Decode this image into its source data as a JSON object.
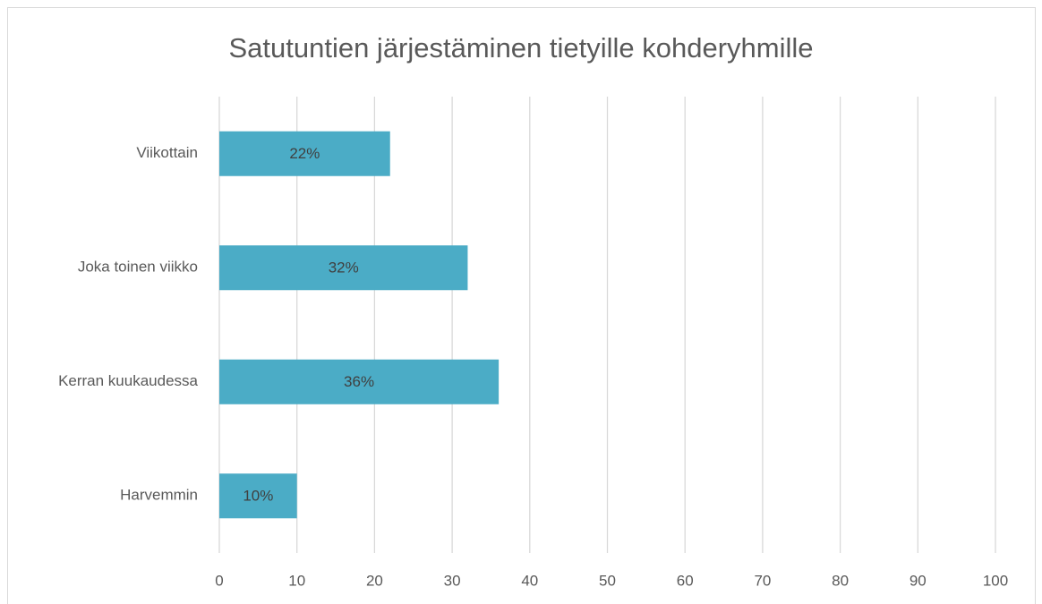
{
  "chart_data": {
    "type": "bar",
    "orientation": "horizontal",
    "title": "Satutuntien järjestäminen tietyille kohderyhmille",
    "categories": [
      "Viikottain",
      "Joka toinen viikko",
      "Kerran kuukaudessa",
      "Harvemmin"
    ],
    "values": [
      22,
      32,
      36,
      10
    ],
    "value_labels": [
      "22%",
      "32%",
      "36%",
      "10%"
    ],
    "color": "#4bacc6",
    "xlim": [
      0,
      100
    ],
    "xticks": [
      0,
      10,
      20,
      30,
      40,
      50,
      60,
      70,
      80,
      90,
      100
    ],
    "grid": true
  }
}
